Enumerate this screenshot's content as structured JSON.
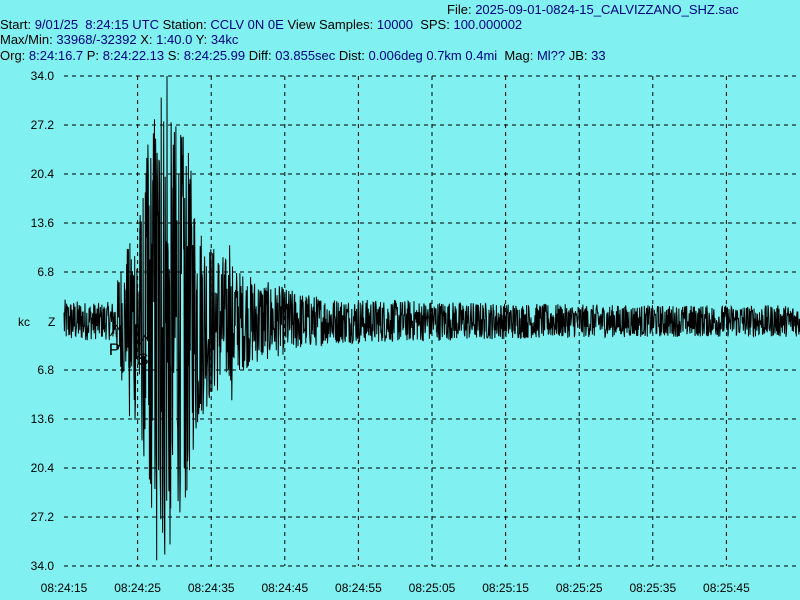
{
  "header": {
    "file_label": "File:",
    "file_value": "2025-09-01-0824-15_CALVIZZANO_SHZ.sac",
    "start_label": "Start:",
    "start_value": "9/01/25  8:24:15 UTC",
    "station_label": "Station:",
    "station_value": "CCLV 0N 0E",
    "view_samples_label": "View Samples:",
    "view_samples_value": "10000",
    "sps_label": "SPS:",
    "sps_value": "100.000002",
    "maxmin_label": "Max/Min:",
    "maxmin_value": "33968/-32392",
    "x_label": "X:",
    "x_value": "1:40.0",
    "y_label": "Y:",
    "y_value": "34kc",
    "org_label": "Org:",
    "org_value": "8:24:16.7",
    "p_label": "P:",
    "p_value": "8:24:22.13",
    "s_label": "S:",
    "s_value": "8:24:25.99",
    "diff_label": "Diff:",
    "diff_value": "03.855sec",
    "dist_label": "Dist:",
    "dist_value": "0.006deg 0.7km 0.4mi",
    "mag_label": "Mag:",
    "mag_value": "Ml??",
    "jb_label": "JB:",
    "jb_value": "33"
  },
  "chart_data": {
    "type": "line",
    "ylabel": "kc",
    "channel_label": "Z",
    "ylim": [
      -34.0,
      34.0
    ],
    "y_ticks": [
      34.0,
      27.2,
      20.4,
      13.6,
      6.8,
      0,
      -6.8,
      -13.6,
      -20.4,
      -27.2,
      -34.0
    ],
    "y_tick_labels": [
      "34.0",
      "27.2",
      "20.4",
      "13.6",
      "6.8",
      "",
      "6.8",
      "13.6",
      "20.4",
      "27.2",
      "34.0"
    ],
    "x_tick_labels": [
      "08:24:15",
      "08:24:25",
      "08:24:35",
      "08:24:45",
      "08:24:55",
      "08:25:05",
      "08:25:15",
      "08:25:25",
      "08:25:35",
      "08:25:45"
    ],
    "grid": true,
    "picks": [
      {
        "label": "P",
        "time": "8:24:22.13"
      },
      {
        "label": "S",
        "time": "8:24:25.99"
      }
    ],
    "series": [
      {
        "envelope": [
          [
            0,
            3.0
          ],
          [
            5,
            2.5
          ],
          [
            7,
            2.8
          ],
          [
            7.5,
            8.0
          ],
          [
            8.5,
            9.0
          ],
          [
            9.5,
            14.0
          ],
          [
            10.5,
            17.0
          ],
          [
            11.5,
            25.0
          ],
          [
            12.5,
            30.0
          ],
          [
            13.5,
            33.0
          ],
          [
            14.5,
            28.0
          ],
          [
            15.5,
            27.0
          ],
          [
            16.5,
            26.0
          ],
          [
            17.5,
            20.0
          ],
          [
            18.5,
            14.0
          ],
          [
            20,
            11.0
          ],
          [
            22,
            9.0
          ],
          [
            24,
            7.0
          ],
          [
            26,
            6.0
          ],
          [
            29,
            5.0
          ],
          [
            32,
            4.0
          ],
          [
            36,
            3.2
          ],
          [
            42,
            3.0
          ],
          [
            50,
            2.8
          ],
          [
            60,
            2.5
          ],
          [
            70,
            2.3
          ],
          [
            80,
            2.2
          ],
          [
            100,
            2.2
          ]
        ],
        "peaks": [
          [
            8.6,
            10.0
          ],
          [
            8.9,
            -13.2
          ],
          [
            9.6,
            9.0
          ],
          [
            10.3,
            12.5
          ],
          [
            10.8,
            -15.0
          ],
          [
            11.4,
            24.5
          ],
          [
            11.6,
            -22.0
          ],
          [
            12.3,
            28.0
          ],
          [
            12.6,
            -33.2
          ],
          [
            13.2,
            31.0
          ],
          [
            13.7,
            -32.4
          ],
          [
            14.0,
            34.0
          ],
          [
            14.4,
            -31.0
          ],
          [
            15.2,
            27.0
          ],
          [
            15.5,
            -25.0
          ],
          [
            16.1,
            23.0
          ],
          [
            16.5,
            -24.5
          ],
          [
            17.0,
            19.0
          ],
          [
            17.6,
            -15.0
          ],
          [
            22.5,
            10.5
          ],
          [
            22.8,
            -11.0
          ]
        ]
      }
    ]
  }
}
